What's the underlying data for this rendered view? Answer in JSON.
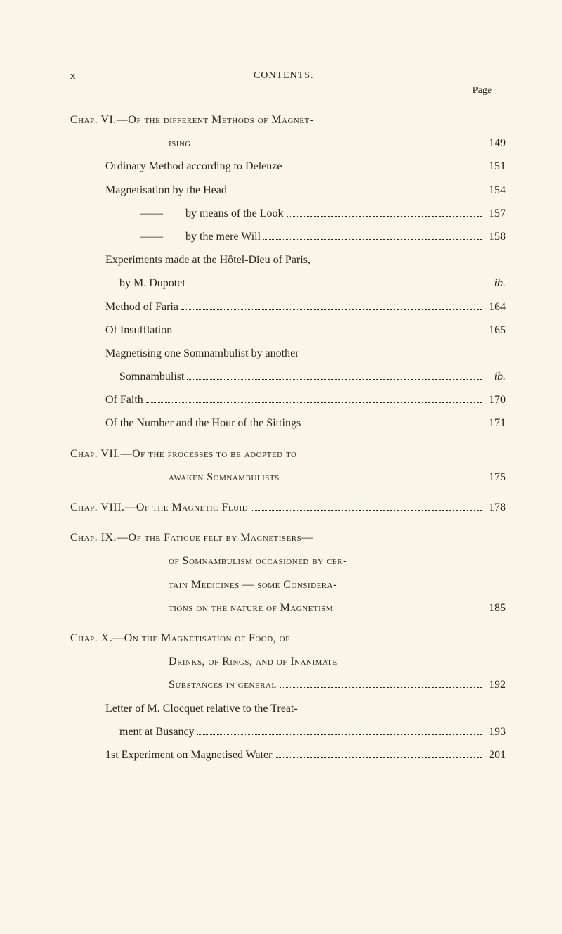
{
  "header": {
    "pageNum": "x",
    "title": "CONTENTS.",
    "pageLabel": "Page"
  },
  "entries": [
    {
      "type": "chapter",
      "lines": [
        {
          "text": "Chap. VI.—Of the different Methods of Magnet-",
          "smallCaps": true
        },
        {
          "text": "ising",
          "indent": "continuation",
          "page": "149",
          "smallCaps": true
        }
      ]
    },
    {
      "type": "sub",
      "text": "Ordinary Method according to Deleuze",
      "page": "151",
      "indent": "indent-1"
    },
    {
      "type": "sub",
      "text": "Magnetisation by the Head",
      "page": "154",
      "indent": "indent-1"
    },
    {
      "type": "sub",
      "text": "——  by means of the Look",
      "page": "157",
      "indent": "indent-2"
    },
    {
      "type": "sub",
      "text": "——  by the mere Will",
      "page": "158",
      "indent": "indent-2"
    },
    {
      "type": "multiline",
      "lines": [
        {
          "text": "Experiments made at the Hôtel-Dieu of Paris,",
          "indent": "indent-1"
        },
        {
          "text": "by M. Dupotet",
          "indent": "sub-indent",
          "page": "ib.",
          "pageItalic": true
        }
      ]
    },
    {
      "type": "sub",
      "text": "Method of Faria",
      "page": "164",
      "indent": "indent-1"
    },
    {
      "type": "sub",
      "text": "Of Insufflation",
      "page": "165",
      "indent": "indent-1"
    },
    {
      "type": "multiline",
      "lines": [
        {
          "text": "Magnetising one Somnambulist by another",
          "indent": "indent-1"
        },
        {
          "text": "Somnambulist",
          "indent": "sub-indent",
          "page": "ib.",
          "pageItalic": true
        }
      ]
    },
    {
      "type": "sub",
      "text": "Of Faith",
      "page": "170",
      "indent": "indent-1"
    },
    {
      "type": "sub",
      "text": "Of the Number and the Hour of the Sittings",
      "page": "171",
      "indent": "indent-1",
      "noDots": true
    },
    {
      "type": "chapter",
      "lines": [
        {
          "text": "Chap. VII.—Of the processes to be adopted to",
          "smallCaps": true
        },
        {
          "text": "awaken Somnambulists",
          "indent": "continuation",
          "page": "175",
          "smallCaps": true
        }
      ]
    },
    {
      "type": "chapter",
      "lines": [
        {
          "text": "Chap. VIII.—Of the Magnetic Fluid",
          "page": "178",
          "smallCaps": true
        }
      ]
    },
    {
      "type": "chapter",
      "lines": [
        {
          "text": "Chap. IX.—Of the Fatigue felt by Magnetisers—",
          "smallCaps": true
        },
        {
          "text": "of Somnambulism occasioned by cer-",
          "indent": "continuation",
          "smallCaps": true
        },
        {
          "text": "tain Medicines — some Considera-",
          "indent": "continuation",
          "smallCaps": true
        },
        {
          "text": "tions on the nature of Magnetism",
          "indent": "continuation",
          "page": "185",
          "smallCaps": true,
          "noDots": true
        }
      ]
    },
    {
      "type": "chapter",
      "lines": [
        {
          "text": "Chap. X.—On the Magnetisation of Food, of",
          "smallCaps": true
        },
        {
          "text": "Drinks, of Rings, and of Inanimate",
          "indent": "continuation",
          "smallCaps": true
        },
        {
          "text": "Substances in general",
          "indent": "continuation",
          "page": "192",
          "smallCaps": true
        }
      ]
    },
    {
      "type": "multiline",
      "lines": [
        {
          "text": "Letter of M. Clocquet relative to the Treat-",
          "indent": "indent-1"
        },
        {
          "text": "ment at Busancy",
          "indent": "sub-indent",
          "page": "193"
        }
      ]
    },
    {
      "type": "sub",
      "text": "1st Experiment on Magnetised Water",
      "page": "201",
      "indent": "indent-1"
    }
  ]
}
